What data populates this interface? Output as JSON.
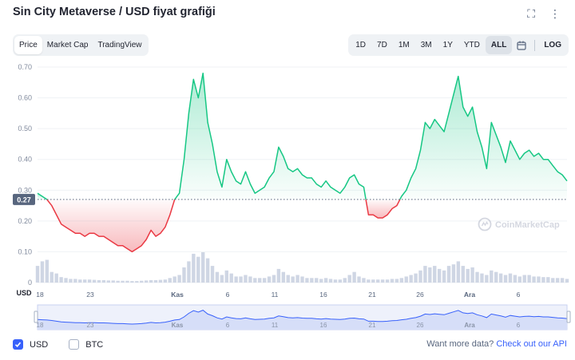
{
  "title": "Sin City Metaverse / USD fiyat grafiği",
  "header_icons": {
    "fullscreen": "⛶",
    "more": "⋮"
  },
  "tabs": [
    {
      "label": "Price",
      "active": true
    },
    {
      "label": "Market Cap",
      "active": false
    },
    {
      "label": "TradingView",
      "active": false
    }
  ],
  "ranges": [
    {
      "label": "1D",
      "active": false
    },
    {
      "label": "7D",
      "active": false
    },
    {
      "label": "1M",
      "active": false
    },
    {
      "label": "3M",
      "active": false
    },
    {
      "label": "1Y",
      "active": false
    },
    {
      "label": "YTD",
      "active": false
    },
    {
      "label": "ALL",
      "active": true
    }
  ],
  "log_label": "LOG",
  "legend": {
    "usd_label": "USD",
    "btc_label": "BTC",
    "usd_checked": true,
    "btc_checked": false
  },
  "api_text": "Want more data?",
  "api_link": "Check out our API",
  "watermark": "CoinMarketCap",
  "colors": {
    "up": "#16c784",
    "down": "#ea3943",
    "accent": "#3861fb",
    "grid": "#eff2f5",
    "volume": "#cfd6e4"
  },
  "chart_data": {
    "type": "line",
    "y_axis_label": "USD",
    "y_ticks": [
      "0.70",
      "0.60",
      "0.50",
      "0.40",
      "0.30",
      "0.20",
      "0.10",
      "0"
    ],
    "ylim": [
      0,
      0.7
    ],
    "reference_price": 0.27,
    "reference_label": "0.27",
    "x_ticks": [
      "18",
      "23",
      "Kas",
      "6",
      "11",
      "16",
      "21",
      "26",
      "Ara",
      "6"
    ],
    "navigator_x_ticks": [
      "18",
      "23",
      "Kas",
      "6",
      "11",
      "16",
      "21",
      "26",
      "Ara",
      "6"
    ],
    "series": [
      {
        "values": [
          0.29,
          0.28,
          0.27,
          0.25,
          0.22,
          0.19,
          0.18,
          0.17,
          0.16,
          0.16,
          0.15,
          0.16,
          0.16,
          0.15,
          0.15,
          0.14,
          0.13,
          0.12,
          0.12,
          0.11,
          0.1,
          0.11,
          0.12,
          0.14,
          0.17,
          0.15,
          0.16,
          0.18,
          0.22,
          0.27,
          0.29,
          0.4,
          0.55,
          0.66,
          0.6,
          0.68,
          0.52,
          0.45,
          0.36,
          0.31,
          0.4,
          0.36,
          0.33,
          0.32,
          0.36,
          0.32,
          0.29,
          0.3,
          0.31,
          0.34,
          0.36,
          0.44,
          0.41,
          0.37,
          0.36,
          0.37,
          0.35,
          0.34,
          0.34,
          0.32,
          0.31,
          0.33,
          0.31,
          0.3,
          0.29,
          0.31,
          0.34,
          0.35,
          0.32,
          0.31,
          0.22,
          0.22,
          0.21,
          0.21,
          0.22,
          0.24,
          0.25,
          0.28,
          0.3,
          0.34,
          0.37,
          0.43,
          0.52,
          0.5,
          0.53,
          0.51,
          0.49,
          0.55,
          0.61,
          0.67,
          0.57,
          0.54,
          0.57,
          0.49,
          0.44,
          0.37,
          0.52,
          0.48,
          0.44,
          0.39,
          0.46,
          0.43,
          0.4,
          0.42,
          0.43,
          0.41,
          0.42,
          0.4,
          0.4,
          0.38,
          0.36,
          0.35,
          0.33
        ]
      }
    ],
    "volume": [
      0.55,
      0.7,
      0.75,
      0.35,
      0.3,
      0.18,
      0.15,
      0.12,
      0.12,
      0.1,
      0.1,
      0.1,
      0.09,
      0.08,
      0.08,
      0.07,
      0.07,
      0.06,
      0.06,
      0.06,
      0.05,
      0.05,
      0.06,
      0.07,
      0.08,
      0.08,
      0.09,
      0.1,
      0.15,
      0.2,
      0.25,
      0.5,
      0.7,
      0.95,
      0.85,
      1.0,
      0.8,
      0.55,
      0.35,
      0.25,
      0.4,
      0.3,
      0.2,
      0.2,
      0.25,
      0.2,
      0.15,
      0.15,
      0.15,
      0.2,
      0.25,
      0.45,
      0.35,
      0.25,
      0.2,
      0.25,
      0.2,
      0.15,
      0.15,
      0.15,
      0.12,
      0.15,
      0.12,
      0.1,
      0.1,
      0.15,
      0.25,
      0.35,
      0.2,
      0.15,
      0.1,
      0.1,
      0.1,
      0.1,
      0.1,
      0.12,
      0.12,
      0.15,
      0.2,
      0.25,
      0.3,
      0.4,
      0.55,
      0.5,
      0.55,
      0.45,
      0.4,
      0.55,
      0.6,
      0.7,
      0.55,
      0.45,
      0.5,
      0.35,
      0.3,
      0.25,
      0.4,
      0.35,
      0.3,
      0.25,
      0.3,
      0.25,
      0.2,
      0.25,
      0.25,
      0.2,
      0.2,
      0.18,
      0.18,
      0.15,
      0.15,
      0.15,
      0.12
    ],
    "grid": true
  }
}
